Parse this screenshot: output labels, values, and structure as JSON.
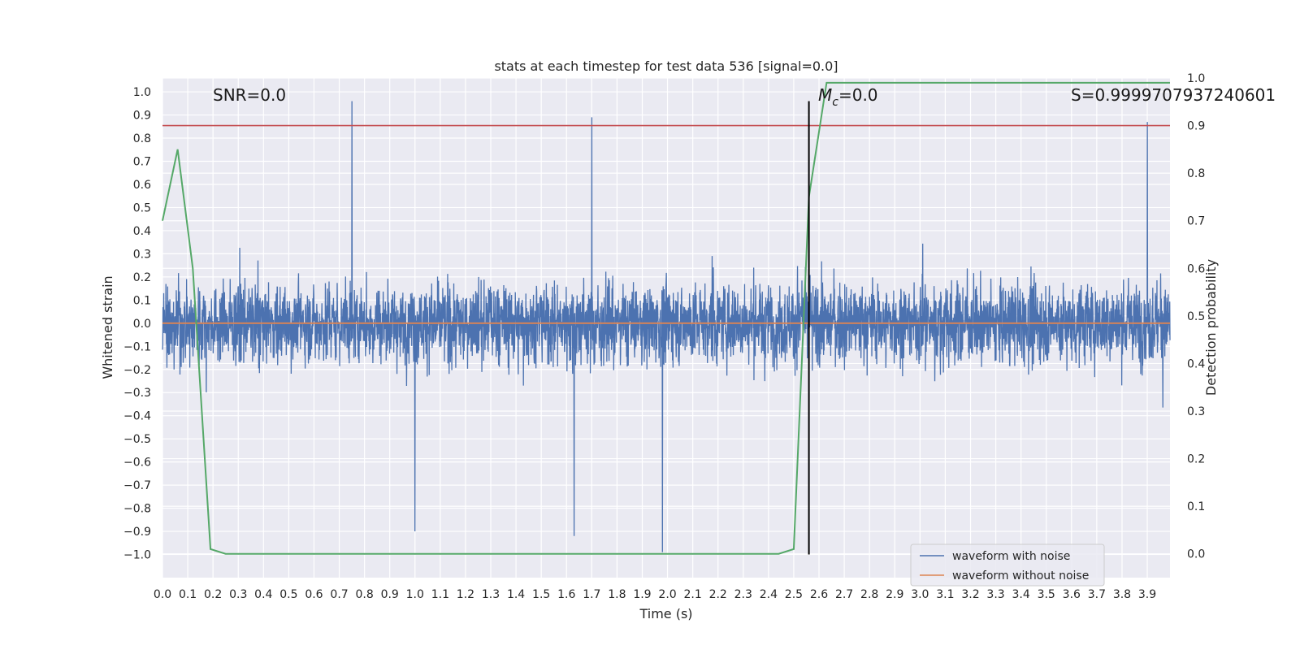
{
  "chart_data": {
    "type": "line",
    "title": "stats at each timestep for test data 536 [signal=0.0]",
    "xlabel": "Time (s)",
    "ylabel_left": "Whitened strain",
    "ylabel_right": "Detection probability",
    "xlim": [
      0.0,
      3.99
    ],
    "ylim_left": [
      -1.1,
      1.06
    ],
    "ylim_right": [
      -0.05,
      1.0
    ],
    "x_ticks": [
      "0.0",
      "0.1",
      "0.2",
      "0.3",
      "0.4",
      "0.5",
      "0.6",
      "0.7",
      "0.8",
      "0.9",
      "1.0",
      "1.1",
      "1.2",
      "1.3",
      "1.4",
      "1.5",
      "1.6",
      "1.7",
      "1.8",
      "1.9",
      "2.0",
      "2.1",
      "2.2",
      "2.3",
      "2.4",
      "2.5",
      "2.6",
      "2.7",
      "2.8",
      "2.9",
      "3.0",
      "3.1",
      "3.2",
      "3.3",
      "3.4",
      "3.5",
      "3.6",
      "3.7",
      "3.8",
      "3.9"
    ],
    "y_left_ticks": [
      "1.0",
      "0.9",
      "0.8",
      "0.7",
      "0.6",
      "0.5",
      "0.4",
      "0.3",
      "0.2",
      "0.1",
      "0.0",
      "−0.1",
      "−0.2",
      "−0.3",
      "−0.4",
      "−0.5",
      "−0.6",
      "−0.7",
      "−0.8",
      "−0.9",
      "−1.0"
    ],
    "y_right_ticks": [
      "1.0",
      "0.9",
      "0.8",
      "0.7",
      "0.6",
      "0.5",
      "0.4",
      "0.3",
      "0.2",
      "0.1",
      "0.0"
    ],
    "grid": true,
    "legend_position": "bottom-right",
    "annotations": {
      "snr": "SNR=0.0",
      "mc_symbol": "M",
      "mc_subscript": "c",
      "mc_value": "=0.0",
      "s": "S=0.9999707937240601"
    },
    "series": [
      {
        "name": "waveform with noise",
        "color": "#4c72b0",
        "axis": "left",
        "description_range": [
          -1.0,
          0.96
        ],
        "notable_spikes": [
          {
            "x": 0.75,
            "y": 0.96
          },
          {
            "x": 1.7,
            "y": 0.89
          },
          {
            "x": 1.98,
            "y": -0.99
          },
          {
            "x": 1.63,
            "y": -0.92
          },
          {
            "x": 1.0,
            "y": -0.9
          },
          {
            "x": 3.9,
            "y": 0.87
          }
        ]
      },
      {
        "name": "waveform without noise",
        "color": "#dd8452",
        "axis": "left",
        "x": [
          0.0,
          3.99
        ],
        "y": [
          0.0,
          0.0
        ]
      },
      {
        "color": "#55a868",
        "axis": "right",
        "x": [
          0.0,
          0.06,
          0.12,
          0.19,
          0.25,
          2.44,
          2.5,
          2.56,
          2.63,
          3.99
        ],
        "y": [
          0.7,
          0.85,
          0.6,
          0.01,
          0.0,
          0.0,
          0.01,
          0.75,
          0.99,
          0.99
        ]
      }
    ],
    "threshold_line": {
      "axis": "right",
      "y": 0.9,
      "color": "#c44e52"
    },
    "event_marker": {
      "x": 2.56,
      "y_range": [
        -1.0,
        0.96
      ],
      "color": "#000000"
    }
  }
}
